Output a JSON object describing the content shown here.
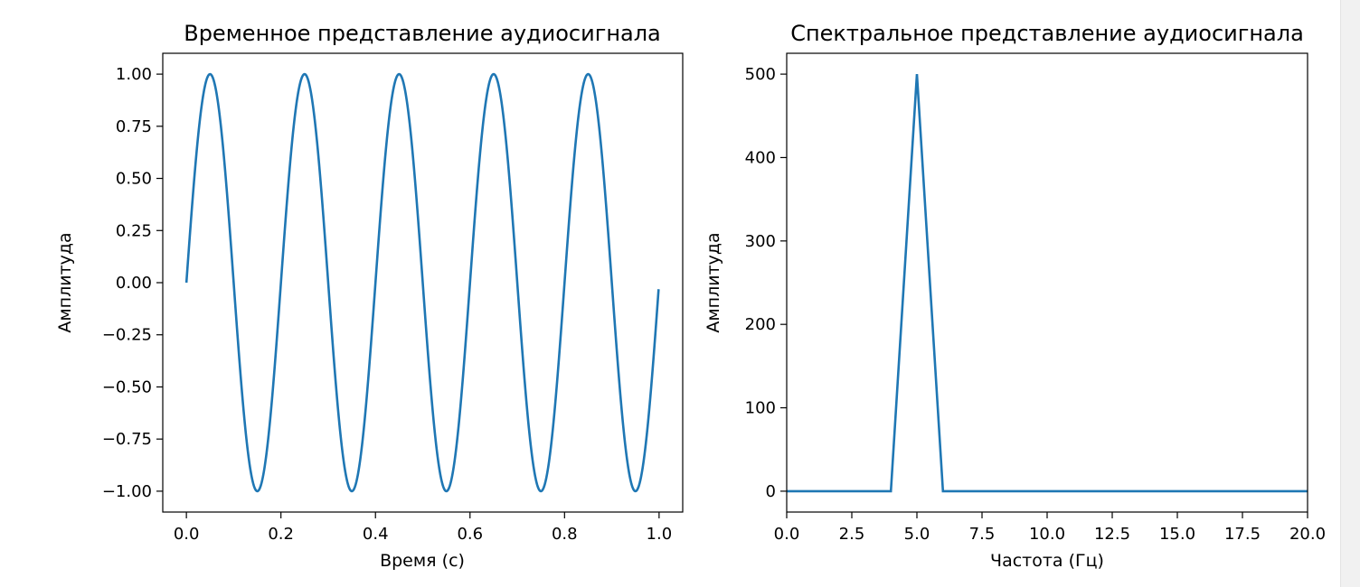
{
  "chart_data": [
    {
      "type": "line",
      "title": "Временное представление аудиосигнала",
      "xlabel": "Время (с)",
      "ylabel": "Амплитуда",
      "xlim": [
        -0.05,
        1.05
      ],
      "ylim": [
        -1.1,
        1.1
      ],
      "xticks": [
        "0.0",
        "0.2",
        "0.4",
        "0.6",
        "0.8",
        "1.0"
      ],
      "yticks": [
        "−1.00",
        "−0.75",
        "−0.50",
        "−0.25",
        "0.00",
        "0.25",
        "0.50",
        "0.75",
        "1.00"
      ],
      "grid": false,
      "series": [
        {
          "function": "sin(2*pi*5*t)",
          "frequency_hz": 5,
          "amplitude": 1.0,
          "x_start": 0.0,
          "x_end": 0.999,
          "color": "#1f77b4"
        }
      ]
    },
    {
      "type": "line",
      "title": "Спектральное представление аудиосигнала",
      "xlabel": "Частота (Гц)",
      "ylabel": "Амплитуда",
      "xlim": [
        0,
        20
      ],
      "ylim": [
        -25,
        525
      ],
      "xticks": [
        "0.0",
        "2.5",
        "5.0",
        "7.5",
        "10.0",
        "12.5",
        "15.0",
        "17.5",
        "20.0"
      ],
      "yticks": [
        "0",
        "100",
        "200",
        "300",
        "400",
        "500"
      ],
      "grid": false,
      "series": [
        {
          "x": [
            0,
            1,
            2,
            3,
            4,
            5,
            6,
            7,
            8,
            9,
            10,
            11,
            12,
            13,
            14,
            15,
            16,
            17,
            18,
            19,
            20
          ],
          "y": [
            0,
            0,
            0,
            0,
            0,
            500,
            0,
            0,
            0,
            0,
            0,
            0,
            0,
            0,
            0,
            0,
            0,
            0,
            0,
            0,
            0
          ],
          "color": "#1f77b4"
        }
      ]
    }
  ]
}
